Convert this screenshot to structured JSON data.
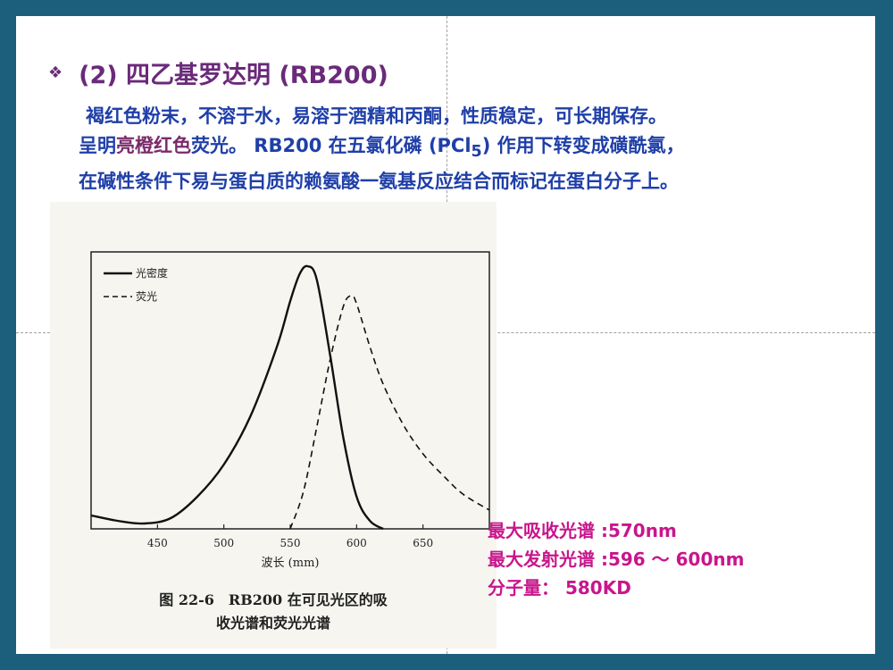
{
  "heading": {
    "bullet": "❖",
    "text": "(2) 四乙基罗达明 (RB200)"
  },
  "paragraph": {
    "line1": "褐红色粉末，不溶于水，易溶于酒精和丙酮，性质稳定，可长期保存。",
    "line2_pre": "呈明",
    "line2_hl": "亮橙红色",
    "line2_mid": "荧光。 RB200 在五氯化磷 (PCl",
    "line2_sub": "5",
    "line2_post": ") 作用下转变成磺酰氯，",
    "line3": "在碱性条件下易与蛋白质的赖氨酸一氨基反应结合而标记在蛋白分子上。"
  },
  "figure": {
    "caption_line1": "图 22-6　RB200 在可见光区的吸",
    "caption_line2": "收光谱和荧光光谱"
  },
  "chart_data": {
    "type": "line",
    "title": "",
    "xlabel": "波长 (mm)",
    "ylabel": "",
    "xlim": [
      400,
      700
    ],
    "ylim": [
      0,
      1
    ],
    "xticks": [
      450,
      500,
      550,
      600,
      650
    ],
    "legend": [
      "光密度",
      "荧光"
    ],
    "legend_placement": "top-left",
    "series": [
      {
        "name": "光密度",
        "style": "solid",
        "x": [
          400,
          420,
          440,
          460,
          480,
          500,
          520,
          540,
          550,
          557,
          563,
          570,
          580,
          590,
          600,
          610,
          620
        ],
        "y": [
          0.05,
          0.03,
          0.02,
          0.04,
          0.12,
          0.24,
          0.42,
          0.68,
          0.85,
          0.95,
          0.98,
          0.93,
          0.65,
          0.34,
          0.12,
          0.03,
          0.0
        ]
      },
      {
        "name": "荧光",
        "style": "dashed",
        "x": [
          550,
          560,
          570,
          580,
          590,
          596,
          600,
          610,
          620,
          635,
          650,
          665,
          680,
          700
        ],
        "y": [
          0.0,
          0.14,
          0.38,
          0.63,
          0.83,
          0.87,
          0.84,
          0.68,
          0.54,
          0.39,
          0.28,
          0.2,
          0.13,
          0.07
        ]
      }
    ]
  },
  "properties": {
    "line1": "最大吸收光谱 :570nm",
    "line2": "最大发射光谱 :596 ～ 600nm",
    "line3": "分子量： 580KD"
  }
}
